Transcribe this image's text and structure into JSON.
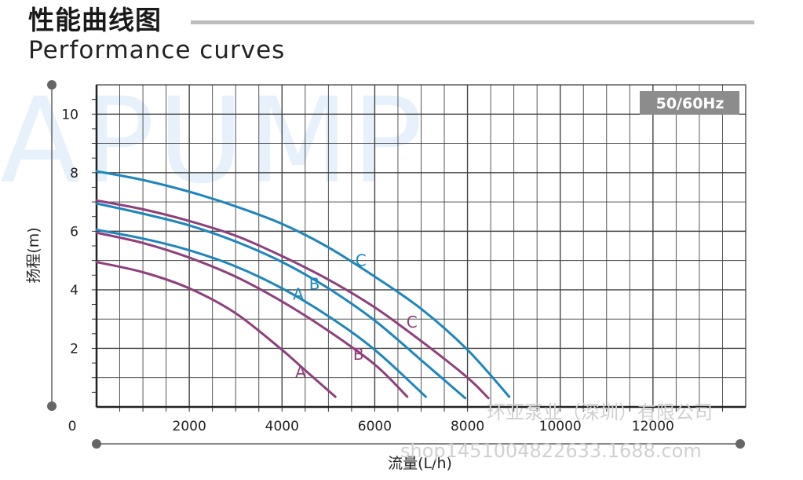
{
  "header": {
    "title_cn": "性能曲线图",
    "title_en": "Performance curves"
  },
  "background_watermark": "APUMP",
  "footer_watermarks": {
    "company": "环亚泵业（深圳）有限公司",
    "site": "shop1451004822633.1688.com"
  },
  "colors": {
    "blue": "#1d86bd",
    "purple": "#8f3f7c",
    "grid": "#444444",
    "badge_bg": "#8c8c8c"
  },
  "chart_data": {
    "type": "line",
    "xlabel": "流量(L/h)",
    "ylabel": "扬程(m)",
    "xlim": [
      0,
      14000
    ],
    "ylim": [
      0,
      11
    ],
    "x_ticks": [
      0,
      2000,
      4000,
      6000,
      8000,
      10000,
      12000
    ],
    "y_ticks": [
      2,
      4,
      6,
      8,
      10
    ],
    "grid": true,
    "frequency_badge": "50/60Hz",
    "series": [
      {
        "name": "A",
        "color": "purple",
        "points": [
          [
            0,
            4.95
          ],
          [
            1000,
            4.6
          ],
          [
            2000,
            4.05
          ],
          [
            3000,
            3.2
          ],
          [
            4000,
            1.95
          ],
          [
            4500,
            1.25
          ],
          [
            5150,
            0.35
          ]
        ]
      },
      {
        "name": "B",
        "color": "purple",
        "points": [
          [
            0,
            5.95
          ],
          [
            1000,
            5.6
          ],
          [
            2000,
            5.1
          ],
          [
            3000,
            4.45
          ],
          [
            4000,
            3.6
          ],
          [
            5000,
            2.6
          ],
          [
            6000,
            1.45
          ],
          [
            6700,
            0.35
          ]
        ]
      },
      {
        "name": "C",
        "color": "purple",
        "points": [
          [
            0,
            7.05
          ],
          [
            1000,
            6.75
          ],
          [
            2000,
            6.35
          ],
          [
            3000,
            5.85
          ],
          [
            4000,
            5.15
          ],
          [
            5000,
            4.35
          ],
          [
            6000,
            3.4
          ],
          [
            7000,
            2.25
          ],
          [
            8000,
            1.0
          ],
          [
            8450,
            0.3
          ]
        ]
      },
      {
        "name": "A",
        "color": "blue",
        "points": [
          [
            0,
            6.05
          ],
          [
            1000,
            5.75
          ],
          [
            2000,
            5.35
          ],
          [
            3000,
            4.8
          ],
          [
            4000,
            4.05
          ],
          [
            5000,
            3.1
          ],
          [
            6000,
            1.95
          ],
          [
            7100,
            0.35
          ]
        ]
      },
      {
        "name": "B",
        "color": "blue",
        "points": [
          [
            0,
            6.95
          ],
          [
            1000,
            6.6
          ],
          [
            2000,
            6.2
          ],
          [
            3000,
            5.65
          ],
          [
            4000,
            4.95
          ],
          [
            5000,
            4.05
          ],
          [
            6000,
            2.95
          ],
          [
            7000,
            1.6
          ],
          [
            7950,
            0.3
          ]
        ]
      },
      {
        "name": "C",
        "color": "blue",
        "points": [
          [
            0,
            8.05
          ],
          [
            1000,
            7.75
          ],
          [
            2000,
            7.35
          ],
          [
            3000,
            6.85
          ],
          [
            4000,
            6.25
          ],
          [
            5000,
            5.45
          ],
          [
            6000,
            4.45
          ],
          [
            7000,
            3.35
          ],
          [
            8000,
            1.95
          ],
          [
            8900,
            0.35
          ]
        ]
      }
    ],
    "annotations": [
      {
        "text": "C",
        "color": "blue",
        "at": [
          5700,
          5.0
        ]
      },
      {
        "text": "B",
        "color": "blue",
        "at": [
          4700,
          4.2
        ]
      },
      {
        "text": "A",
        "color": "blue",
        "at": [
          4350,
          3.85
        ]
      },
      {
        "text": "C",
        "color": "purple",
        "at": [
          6800,
          2.9
        ]
      },
      {
        "text": "B",
        "color": "purple",
        "at": [
          5650,
          1.8
        ]
      },
      {
        "text": "A",
        "color": "purple",
        "at": [
          4400,
          1.2
        ]
      }
    ]
  }
}
